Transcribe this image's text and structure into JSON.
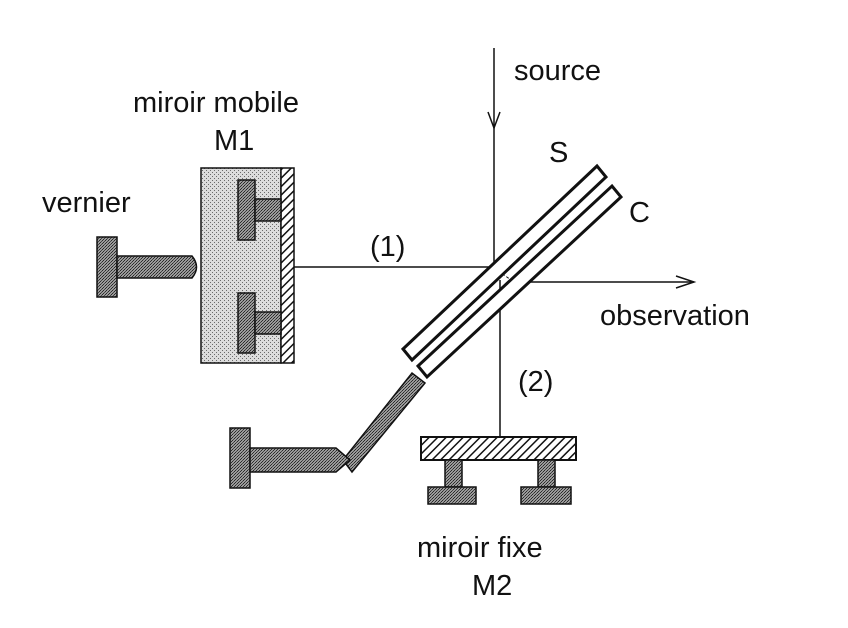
{
  "diagram": {
    "labels": {
      "source": "source",
      "miroir_mobile": "miroir mobile",
      "m1": "M1",
      "vernier": "vernier",
      "s": "S",
      "c": "C",
      "beam1": "(1)",
      "beam2": "(2)",
      "observation": "observation",
      "miroir_fixe": "miroir fixe",
      "m2": "M2"
    }
  }
}
